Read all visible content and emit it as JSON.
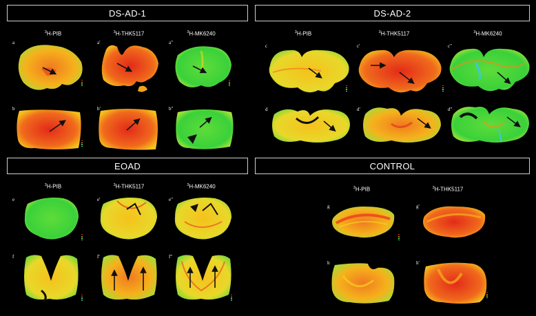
{
  "panels": {
    "ds_ad_1": {
      "title": "DS-AD-1",
      "columns": [
        "PIB",
        "THK5117",
        "MK6240"
      ]
    },
    "ds_ad_2": {
      "title": "DS-AD-2",
      "columns": [
        "PIB",
        "THK5117",
        "MK6240"
      ]
    },
    "eoad": {
      "title": "EOAD",
      "columns": [
        "PIB",
        "THK5117",
        "MK6240"
      ]
    },
    "control": {
      "title": "CONTROL",
      "columns": [
        "PIB",
        "THK5117"
      ]
    }
  },
  "isotope": "3",
  "labels": {
    "a": "a",
    "a1": "a′",
    "a2": "a′′",
    "b": "b",
    "b1": "b′",
    "b2": "b′′",
    "c": "c",
    "c1": "c′",
    "c2": "c′′",
    "d": "d",
    "d1": "d′",
    "d2": "d′′",
    "e": "e",
    "e1": "e′",
    "e2": "e′′",
    "f": "f",
    "f1": "f′",
    "f2": "f′′",
    "g": "g",
    "g1": "g′",
    "h": "h",
    "h1": "h′"
  },
  "colors": {
    "high": "#e8301c",
    "mid": "#f5b21c",
    "low": "#3ad13a",
    "cyan": "#3fc8d8",
    "border": "#d0d0d0"
  }
}
